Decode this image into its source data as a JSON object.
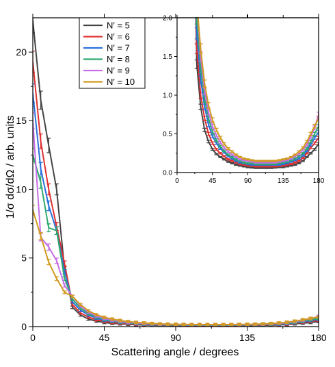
{
  "chart_data": [
    {
      "type": "line",
      "panel": "main",
      "xlabel": "Scattering angle / degrees",
      "ylabel": "1/σ dσ/dΩ  / arb. units",
      "xlim": [
        0,
        180
      ],
      "ylim": [
        0,
        22.5
      ],
      "x_ticks": [
        "0",
        "45",
        "90",
        "135",
        "180"
      ],
      "y_ticks": [
        "0",
        "5",
        "10",
        "15",
        "20"
      ],
      "legend_position": "top-left",
      "grid": false,
      "x": [
        0,
        5,
        10,
        15,
        20,
        25,
        30,
        35,
        40,
        45,
        50,
        55,
        60,
        65,
        70,
        75,
        80,
        85,
        90,
        95,
        100,
        105,
        110,
        115,
        120,
        125,
        130,
        135,
        140,
        145,
        150,
        155,
        160,
        165,
        170,
        175,
        180
      ],
      "series": [
        {
          "name": "N′ = 5",
          "color": "#444444",
          "values": [
            22.3,
            16.5,
            13.2,
            10.0,
            4.2,
            1.4,
            0.85,
            0.55,
            0.4,
            0.3,
            0.24,
            0.2,
            0.17,
            0.14,
            0.12,
            0.1,
            0.09,
            0.08,
            0.07,
            0.065,
            0.06,
            0.06,
            0.06,
            0.06,
            0.06,
            0.065,
            0.07,
            0.07,
            0.08,
            0.09,
            0.1,
            0.12,
            0.15,
            0.2,
            0.25,
            0.3,
            0.37
          ]
        },
        {
          "name": "N′ = 6",
          "color": "#e03030",
          "values": [
            19.3,
            13.5,
            10.0,
            7.3,
            4.6,
            1.6,
            1.0,
            0.7,
            0.5,
            0.38,
            0.3,
            0.25,
            0.21,
            0.17,
            0.15,
            0.13,
            0.11,
            0.1,
            0.09,
            0.085,
            0.08,
            0.08,
            0.08,
            0.08,
            0.08,
            0.08,
            0.085,
            0.09,
            0.1,
            0.11,
            0.13,
            0.15,
            0.19,
            0.25,
            0.32,
            0.38,
            0.45
          ]
        },
        {
          "name": "N′ = 7",
          "color": "#2a6fdb",
          "values": [
            17.0,
            11.5,
            8.8,
            7.0,
            4.0,
            1.8,
            1.2,
            0.85,
            0.62,
            0.47,
            0.38,
            0.31,
            0.26,
            0.21,
            0.18,
            0.15,
            0.13,
            0.12,
            0.11,
            0.1,
            0.1,
            0.1,
            0.1,
            0.1,
            0.1,
            0.1,
            0.1,
            0.11,
            0.12,
            0.14,
            0.16,
            0.18,
            0.22,
            0.28,
            0.36,
            0.45,
            0.52
          ]
        },
        {
          "name": "N′ = 8",
          "color": "#2ea86e",
          "values": [
            12.5,
            10.5,
            7.2,
            7.0,
            3.5,
            2.0,
            1.35,
            0.95,
            0.7,
            0.53,
            0.42,
            0.34,
            0.28,
            0.23,
            0.2,
            0.17,
            0.15,
            0.13,
            0.12,
            0.12,
            0.11,
            0.11,
            0.11,
            0.11,
            0.11,
            0.11,
            0.12,
            0.13,
            0.14,
            0.16,
            0.18,
            0.21,
            0.25,
            0.31,
            0.4,
            0.5,
            0.6
          ]
        },
        {
          "name": "N′ = 9",
          "color": "#c56ee6",
          "values": [
            15.0,
            6.5,
            5.8,
            4.8,
            3.0,
            2.2,
            1.5,
            1.05,
            0.78,
            0.6,
            0.48,
            0.39,
            0.32,
            0.27,
            0.23,
            0.2,
            0.17,
            0.16,
            0.15,
            0.14,
            0.13,
            0.13,
            0.13,
            0.13,
            0.13,
            0.13,
            0.14,
            0.15,
            0.16,
            0.18,
            0.21,
            0.24,
            0.29,
            0.36,
            0.46,
            0.58,
            0.75
          ]
        },
        {
          "name": "N′ = 10",
          "color": "#d19b1e",
          "values": [
            8.5,
            6.6,
            4.7,
            3.5,
            2.5,
            2.2,
            1.6,
            1.15,
            0.87,
            0.68,
            0.55,
            0.45,
            0.37,
            0.31,
            0.27,
            0.23,
            0.2,
            0.18,
            0.17,
            0.16,
            0.15,
            0.15,
            0.15,
            0.15,
            0.15,
            0.15,
            0.16,
            0.17,
            0.18,
            0.2,
            0.23,
            0.27,
            0.32,
            0.4,
            0.5,
            0.6,
            0.7
          ]
        }
      ]
    },
    {
      "type": "line",
      "panel": "inset",
      "xlim": [
        0,
        180
      ],
      "ylim": [
        0,
        2.0
      ],
      "x_ticks": [
        "0",
        "45",
        "90",
        "135",
        "180"
      ],
      "y_ticks": [
        "0.0",
        "0.5",
        "1.0",
        "1.5",
        "2.0"
      ],
      "grid": false,
      "note": "same series as main panel, zoomed"
    }
  ]
}
